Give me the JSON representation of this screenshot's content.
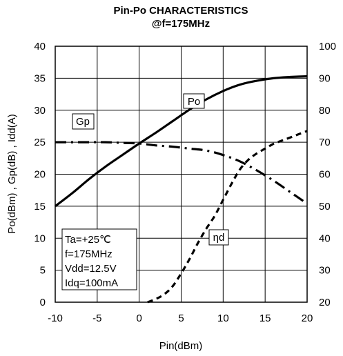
{
  "chart_data": {
    "type": "line",
    "title": "Pin-Po CHARACTERISTICS",
    "subtitle": "@f=175MHz",
    "xlabel": "Pin(dBm)",
    "ylabel": "Po(dBm) , Gp(dB) , Idd(A)",
    "xlim": [
      -10,
      20
    ],
    "ylim": [
      0,
      40
    ],
    "y2lim": [
      20,
      100
    ],
    "x_ticks": [
      "-10",
      "-5",
      "0",
      "5",
      "10",
      "15",
      "20"
    ],
    "y_ticks": [
      "0",
      "5",
      "10",
      "15",
      "20",
      "25",
      "30",
      "35",
      "40"
    ],
    "y2_ticks": [
      "20",
      "30",
      "40",
      "50",
      "60",
      "70",
      "80",
      "90",
      "100"
    ],
    "grid": true,
    "series": [
      {
        "name": "Po",
        "axis": "left",
        "style": "solid",
        "x": [
          -10,
          -8,
          -6,
          -4,
          -2,
          0,
          2,
          4,
          6,
          8,
          10,
          12,
          14,
          16,
          18,
          20
        ],
        "y": [
          15,
          17,
          19.2,
          21.2,
          23,
          24.8,
          26.5,
          28.3,
          30.1,
          31.7,
          33,
          34,
          34.6,
          35,
          35.2,
          35.3
        ]
      },
      {
        "name": "Gp",
        "axis": "left",
        "style": "dashdot",
        "x": [
          -10,
          -6,
          -4,
          -2,
          0,
          2,
          4,
          6,
          8,
          10,
          12,
          14,
          16,
          18,
          20
        ],
        "y": [
          25,
          25,
          25,
          24.9,
          24.8,
          24.5,
          24.3,
          24,
          23.7,
          23,
          22,
          20.6,
          19,
          17.2,
          15.4
        ]
      },
      {
        "name": "ηd",
        "axis": "right",
        "style": "dashed",
        "x": [
          1,
          2,
          3,
          4,
          5,
          6,
          7,
          8,
          9,
          10,
          11,
          12,
          13,
          14,
          15,
          16,
          17,
          18,
          19,
          20
        ],
        "y": [
          20,
          21,
          22.5,
          25,
          29,
          33.5,
          38.5,
          43,
          47,
          52,
          57,
          61.5,
          64.5,
          66.5,
          68,
          69.5,
          70.5,
          71.5,
          72.5,
          73.5
        ]
      }
    ],
    "labels": [
      {
        "text": "Po",
        "series": "Po"
      },
      {
        "text": "Gp",
        "series": "Gp"
      },
      {
        "text": "ηd",
        "series": "ηd"
      }
    ],
    "conditions": [
      "Ta=+25℃",
      "f=175MHz",
      "Vdd=12.5V",
      "Idq=100mA"
    ]
  }
}
